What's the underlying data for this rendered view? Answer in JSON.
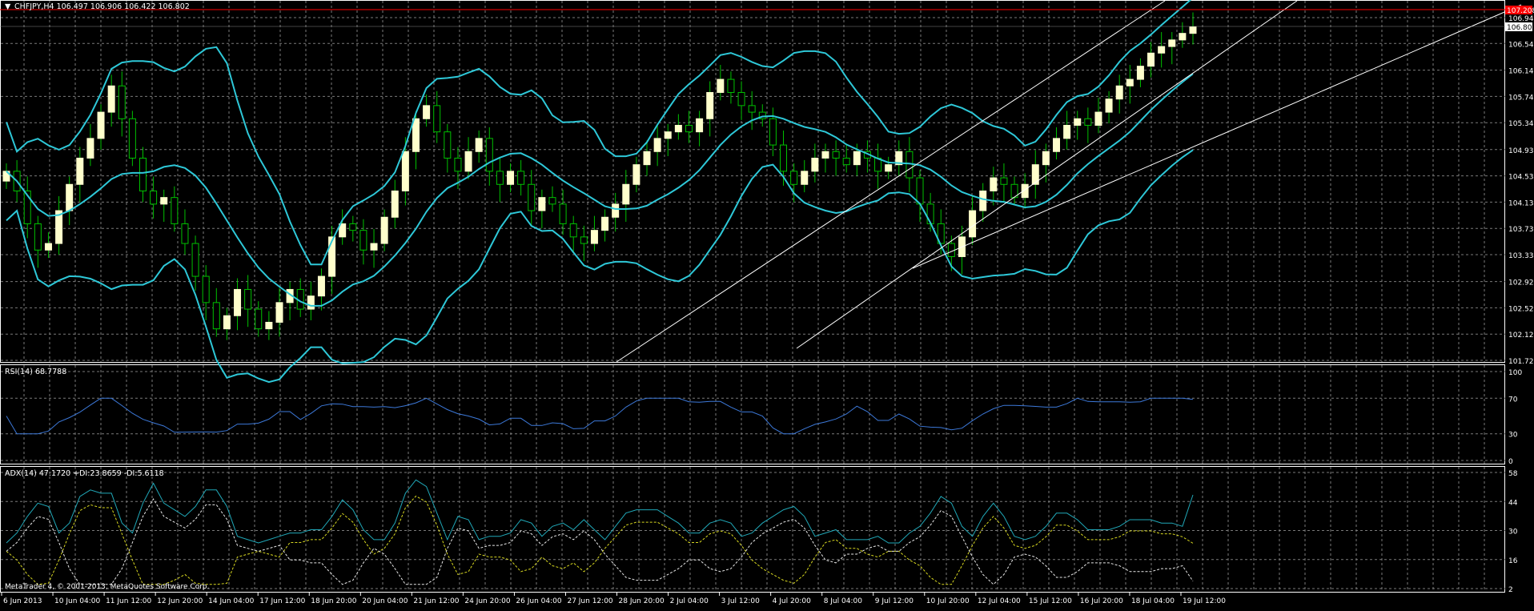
{
  "price_panel": {
    "header": "CHFJPY,H4  106.497 106.906 106.422 106.802",
    "ticks": [
      "106.940",
      "106.546",
      "106.140",
      "105.740",
      "105.340",
      "104.930",
      "104.530",
      "104.130",
      "103.730",
      "103.330",
      "102.920",
      "102.520",
      "102.120",
      "101.720"
    ],
    "current_price": "106.802",
    "alert_price": "107.208"
  },
  "rsi_panel": {
    "header": "RSI(14) 68.7788",
    "ticks": [
      "100",
      "70",
      "30",
      "0"
    ]
  },
  "adx_panel": {
    "header": "ADX(14) 47.1720 +DI:23.8659 -DI:5.6118",
    "ticks": [
      "58",
      "44",
      "30",
      "16",
      "2"
    ]
  },
  "x_axis_labels": [
    "6 Jun 2013",
    "10 Jun 04:00",
    "11 Jun 12:00",
    "12 Jun 20:00",
    "14 Jun 04:00",
    "17 Jun 12:00",
    "18 Jun 20:00",
    "20 Jun 04:00",
    "21 Jun 12:00",
    "24 Jun 20:00",
    "26 Jun 04:00",
    "27 Jun 12:00",
    "28 Jun 20:00",
    "2 Jul 04:00",
    "3 Jul 12:00",
    "4 Jul 20:00",
    "8 Jul 04:00",
    "9 Jul 12:00",
    "10 Jul 20:00",
    "12 Jul 04:00",
    "15 Jul 12:00",
    "16 Jul 20:00",
    "18 Jul 04:00",
    "19 Jul 12:00"
  ],
  "copyright": "MetaTrader 4, © 2001-2013, MetaQuotes Software Corp.",
  "colors": {
    "background": "#000000",
    "grid": "#7a7a7a",
    "candle_bull": "#ffffcc",
    "candle_bear": "#00c000",
    "bollinger": "#2ec8d8",
    "rsi": "#3c78d8",
    "adx": "#20a8b8",
    "plus_di": "#d8d820",
    "minus_di": "#e8e8e8",
    "alert_line": "#ff0000",
    "channel": "#ffffff"
  },
  "chart_data": [
    {
      "type": "candlestick",
      "title": "CHFJPY,H4",
      "ylim": [
        101.62,
        107.2
      ],
      "close_series": [
        104.6,
        104.3,
        103.8,
        103.4,
        103.5,
        104.0,
        104.4,
        104.8,
        105.1,
        105.5,
        105.9,
        105.4,
        104.8,
        104.3,
        104.1,
        104.2,
        103.8,
        103.5,
        103.0,
        102.6,
        102.2,
        102.4,
        102.8,
        102.5,
        102.2,
        102.3,
        102.6,
        102.8,
        102.5,
        102.7,
        103.0,
        103.6,
        103.8,
        103.7,
        103.4,
        103.5,
        103.9,
        104.3,
        104.9,
        105.4,
        105.6,
        105.2,
        104.8,
        104.6,
        104.9,
        105.1,
        104.6,
        104.4,
        104.6,
        104.4,
        104.0,
        104.2,
        104.1,
        103.8,
        103.6,
        103.5,
        103.7,
        103.9,
        104.1,
        104.4,
        104.7,
        104.9,
        105.1,
        105.2,
        105.3,
        105.2,
        105.4,
        105.8,
        106.0,
        105.8,
        105.6,
        105.5,
        105.4,
        105.0,
        104.6,
        104.4,
        104.6,
        104.8,
        104.9,
        104.8,
        104.7,
        104.9,
        104.8,
        104.6,
        104.7,
        104.9,
        104.5,
        104.1,
        103.8,
        103.5,
        103.3,
        103.6,
        104.0,
        104.3,
        104.5,
        104.4,
        104.2,
        104.4,
        104.7,
        104.9,
        105.1,
        105.3,
        105.4,
        105.3,
        105.5,
        105.7,
        105.9,
        106.0,
        106.2,
        106.4,
        106.5,
        106.6,
        106.7,
        106.8
      ],
      "bollinger": {
        "period": 20
      },
      "channel_lines": 3
    },
    {
      "type": "line",
      "title": "RSI(14)",
      "ylim": [
        0,
        100
      ],
      "value": 68.7788
    },
    {
      "type": "line",
      "title": "ADX(14)",
      "ylim": [
        0,
        58
      ],
      "series": [
        {
          "name": "ADX",
          "value": 47.172
        },
        {
          "name": "+DI",
          "value": 23.8659
        },
        {
          "name": "-DI",
          "value": 5.6118
        }
      ]
    }
  ]
}
